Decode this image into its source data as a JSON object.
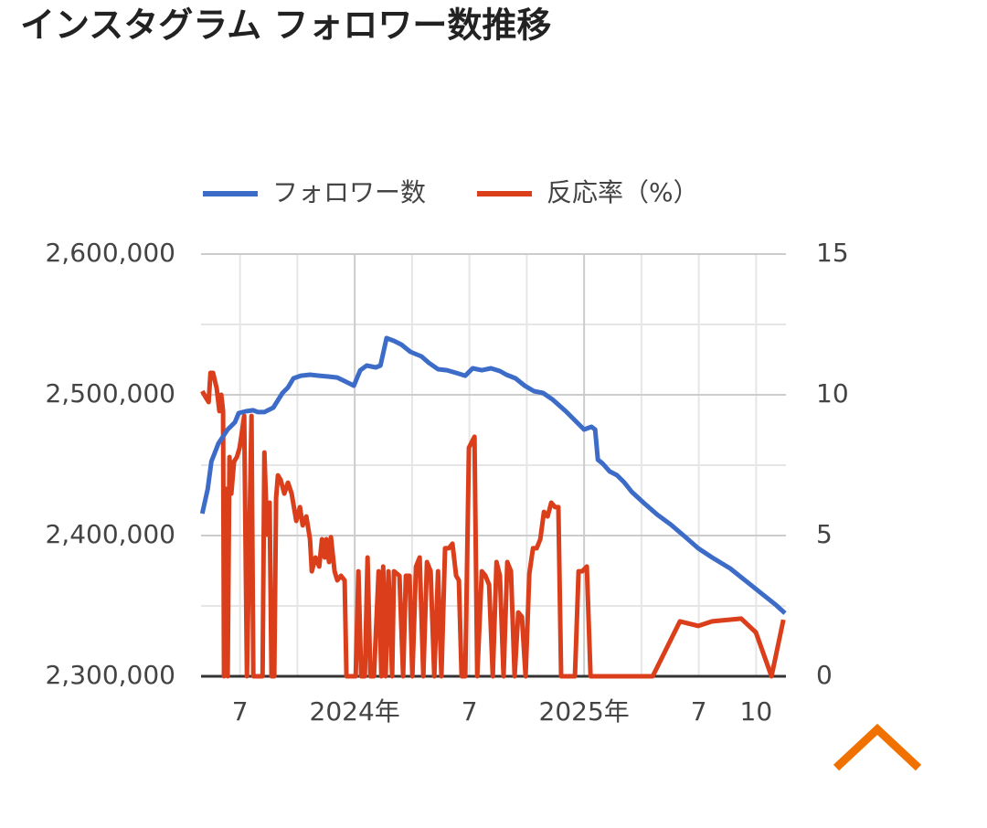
{
  "chart_data": {
    "type": "line",
    "title": "インスタグラム フォロワー数推移",
    "legend": "top",
    "grid": true,
    "xlim": [
      2023.33,
      2025.88
    ],
    "xticks": [
      {
        "value": 2023.5,
        "label": "7"
      },
      {
        "value": 2024,
        "label": "2024年"
      },
      {
        "value": 2024.5,
        "label": "7"
      },
      {
        "value": 2025,
        "label": "2025年"
      },
      {
        "value": 2025.5,
        "label": "7"
      },
      {
        "value": 2025.75,
        "label": "10"
      }
    ],
    "xminor": [
      2023.75,
      2024.25,
      2024.75,
      2025.25
    ],
    "ylim": [
      2300000,
      2600000
    ],
    "yticks": [
      {
        "value": 2300000,
        "label": "2,300,000"
      },
      {
        "value": 2400000,
        "label": "2,400,000"
      },
      {
        "value": 2500000,
        "label": "2,500,000"
      },
      {
        "value": 2600000,
        "label": "2,600,000"
      }
    ],
    "yminor": [
      2350000,
      2450000,
      2550000
    ],
    "y2lim": [
      0,
      15
    ],
    "y2ticks": [
      0,
      5,
      10,
      15
    ],
    "series": [
      {
        "name": "フォロワー数",
        "color": "#3d6cc8",
        "x": [
          2023.335,
          2023.359,
          2023.375,
          2023.406,
          2023.446,
          2023.478,
          2023.494,
          2023.526,
          2023.558,
          2023.578,
          2023.606,
          2023.645,
          2023.685,
          2023.709,
          2023.733,
          2023.765,
          2023.805,
          2023.845,
          2023.884,
          2023.924,
          2023.964,
          2023.996,
          2024.024,
          2024.052,
          2024.092,
          2024.112,
          2024.139,
          2024.171,
          2024.203,
          2024.243,
          2024.291,
          2024.323,
          2024.363,
          2024.402,
          2024.442,
          2024.482,
          2024.514,
          2024.554,
          2024.594,
          2024.633,
          2024.661,
          2024.701,
          2024.741,
          2024.781,
          2024.821,
          2024.861,
          2024.92,
          2024.968,
          2025.0,
          2025.032,
          2025.048,
          2025.06,
          2025.08,
          2025.112,
          2025.143,
          2025.175,
          2025.207,
          2025.259,
          2025.319,
          2025.378,
          2025.438,
          2025.498,
          2025.558,
          2025.637,
          2025.717,
          2025.777,
          2025.837,
          2025.876
        ],
        "values": [
          2415600,
          2433100,
          2452600,
          2465600,
          2475300,
          2480500,
          2487000,
          2488300,
          2489000,
          2487700,
          2487700,
          2490900,
          2501300,
          2505200,
          2511700,
          2513600,
          2514300,
          2513600,
          2513000,
          2512300,
          2509100,
          2506500,
          2517500,
          2520800,
          2519500,
          2520800,
          2540300,
          2538300,
          2535700,
          2530500,
          2527300,
          2522700,
          2518200,
          2517500,
          2515600,
          2513600,
          2518800,
          2517500,
          2518800,
          2516900,
          2514300,
          2511700,
          2506500,
          2502600,
          2501300,
          2496800,
          2488300,
          2480500,
          2475300,
          2477300,
          2475300,
          2453900,
          2451300,
          2445500,
          2442900,
          2437700,
          2431200,
          2423400,
          2414900,
          2407800,
          2399400,
          2390900,
          2384400,
          2376600,
          2366200,
          2358400,
          2350600,
          2344800
        ]
      },
      {
        "name": "反応率（%）",
        "color": "#db3e1a",
        "axis": "y2",
        "x": [
          2023.335,
          2023.351,
          2023.363,
          2023.371,
          2023.382,
          2023.398,
          2023.41,
          2023.418,
          2023.426,
          2023.43,
          2023.438,
          2023.446,
          2023.454,
          2023.462,
          2023.474,
          2023.486,
          2023.498,
          2023.51,
          2023.518,
          2023.53,
          2023.55,
          2023.558,
          2023.598,
          2023.606,
          2023.618,
          2023.629,
          2023.637,
          2023.649,
          2023.657,
          2023.665,
          2023.677,
          2023.693,
          2023.709,
          2023.725,
          2023.745,
          2023.761,
          2023.773,
          2023.789,
          2023.805,
          2023.813,
          2023.829,
          2023.845,
          2023.857,
          2023.869,
          2023.876,
          2023.888,
          2023.896,
          2023.912,
          2023.924,
          2023.94,
          2023.956,
          2023.964,
          2024.004,
          2024.016,
          2024.028,
          2024.044,
          2024.056,
          2024.068,
          2024.084,
          2024.104,
          2024.116,
          2024.124,
          2024.135,
          2024.147,
          2024.163,
          2024.171,
          2024.195,
          2024.211,
          2024.223,
          2024.239,
          2024.251,
          2024.267,
          2024.283,
          2024.299,
          2024.315,
          2024.331,
          2024.347,
          2024.363,
          2024.378,
          2024.394,
          2024.41,
          2024.426,
          2024.442,
          2024.454,
          2024.466,
          2024.482,
          2024.498,
          2024.522,
          2024.534,
          2024.554,
          2024.57,
          2024.586,
          2024.602,
          2024.618,
          2024.633,
          2024.649,
          2024.665,
          2024.681,
          2024.697,
          2024.713,
          2024.729,
          2024.745,
          2024.761,
          2024.777,
          2024.793,
          2024.809,
          2024.825,
          2024.841,
          2024.857,
          2024.873,
          2024.888,
          2024.9,
          2024.94,
          2024.96,
          2024.976,
          2024.992,
          2025.012,
          2025.028,
          2025.299,
          2025.418,
          2025.498,
          2025.558,
          2025.685,
          2025.749,
          2025.817,
          2025.869
        ],
        "values": [
          10.13,
          9.9,
          9.74,
          10.78,
          10.78,
          10.23,
          9.42,
          10.0,
          9.42,
          0,
          6.66,
          0,
          7.79,
          6.49,
          7.63,
          7.79,
          8.12,
          8.77,
          9.25,
          0,
          9.25,
          0,
          0,
          7.95,
          5.03,
          6.17,
          0,
          0,
          6.33,
          7.14,
          6.98,
          6.49,
          6.88,
          6.49,
          5.52,
          6.01,
          5.36,
          5.68,
          4.87,
          3.73,
          4.22,
          3.9,
          4.87,
          4.22,
          4.87,
          4.06,
          4.94,
          3.73,
          3.41,
          3.57,
          3.41,
          0,
          0,
          3.73,
          0,
          0,
          4.22,
          0,
          0,
          3.73,
          0,
          3.9,
          0,
          3.73,
          0,
          3.73,
          3.57,
          0,
          3.57,
          3.57,
          0,
          3.9,
          4.22,
          0,
          4.06,
          3.73,
          0,
          3.73,
          0,
          4.55,
          4.55,
          4.71,
          3.57,
          3.41,
          0,
          0,
          8.12,
          8.51,
          0,
          3.73,
          3.57,
          3.25,
          0,
          4.06,
          3.57,
          0,
          4.06,
          3.73,
          0,
          2.27,
          2.11,
          0,
          3.64,
          4.55,
          4.55,
          4.87,
          5.84,
          5.68,
          6.17,
          6.01,
          6.01,
          0,
          0,
          0,
          3.73,
          3.73,
          3.9,
          0,
          0,
          1.95,
          1.79,
          1.95,
          2.05,
          1.56,
          0,
          2.01
        ]
      }
    ]
  }
}
